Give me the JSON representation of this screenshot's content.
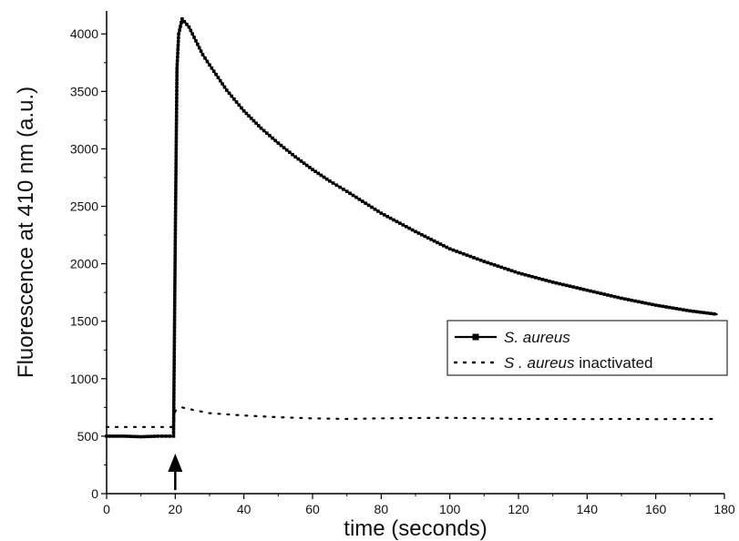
{
  "chart_data": {
    "type": "line",
    "xlabel": "time (seconds)",
    "ylabel": "Fluorescence at 410 nm (a.u.)",
    "xlim": [
      0,
      180
    ],
    "ylim": [
      0,
      4200
    ],
    "x_ticks": [
      0,
      20,
      40,
      60,
      80,
      100,
      120,
      140,
      160,
      180
    ],
    "y_ticks": [
      0,
      500,
      1000,
      1500,
      2000,
      2500,
      3000,
      3500,
      4000
    ],
    "grid": false,
    "legend_position": "center-right",
    "annotations": [
      {
        "type": "arrow",
        "direction": "up",
        "at_x": 20
      }
    ],
    "series": [
      {
        "name": "S. aureus",
        "legend_label": [
          {
            "text": "S. aureus",
            "italic": true
          }
        ],
        "style": "dash-square",
        "color": "#000000",
        "x": [
          0,
          5,
          10,
          15,
          19.5,
          20,
          20.5,
          21,
          22,
          24,
          26,
          28,
          30,
          35,
          40,
          45,
          50,
          55,
          60,
          65,
          70,
          80,
          90,
          100,
          110,
          120,
          130,
          140,
          150,
          160,
          170,
          178
        ],
        "y": [
          500,
          500,
          495,
          500,
          500,
          2200,
          3700,
          4000,
          4130,
          4060,
          3940,
          3820,
          3730,
          3510,
          3330,
          3180,
          3050,
          2930,
          2820,
          2720,
          2630,
          2440,
          2280,
          2130,
          2020,
          1920,
          1840,
          1770,
          1700,
          1640,
          1590,
          1560
        ]
      },
      {
        "name": "S . aureus inactivated",
        "legend_label": [
          {
            "text": "S . aureus",
            "italic": true
          },
          {
            "text": " inactivated",
            "italic": false
          }
        ],
        "style": "dotted",
        "color": "#000000",
        "x": [
          0,
          5,
          10,
          15,
          19.5,
          20,
          21,
          22,
          25,
          30,
          40,
          50,
          60,
          70,
          80,
          90,
          100,
          110,
          120,
          130,
          140,
          150,
          160,
          170,
          178
        ],
        "y": [
          580,
          580,
          580,
          580,
          580,
          720,
          740,
          750,
          730,
          700,
          680,
          665,
          655,
          650,
          655,
          658,
          660,
          655,
          650,
          650,
          648,
          650,
          648,
          650,
          650
        ]
      }
    ]
  }
}
